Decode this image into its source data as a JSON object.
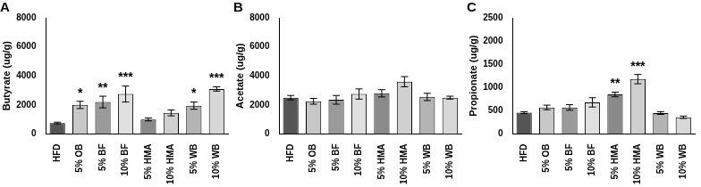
{
  "chart_data": [
    {
      "type": "bar",
      "title": "A",
      "y_label": "Butyrate (ug/g)",
      "categories": [
        "HFD",
        "5% OB",
        "5% BF",
        "10% BF",
        "5% HMA",
        "10% HMA",
        "5% WB",
        "10% WB"
      ],
      "values": [
        750,
        2000,
        2200,
        2750,
        1000,
        1450,
        1950,
        3100
      ],
      "errors": [
        60,
        250,
        400,
        550,
        100,
        200,
        250,
        150
      ],
      "annotations": [
        null,
        "*",
        "**",
        "***",
        null,
        null,
        "*",
        "***"
      ],
      "colors": [
        "#555555",
        "#c8c8c8",
        "#9a9a9a",
        "#e0e0e0",
        "#8a8a8a",
        "#d0d0d0",
        "#b4b4b4",
        "#d8d8d8"
      ],
      "ylim": [
        0,
        8000
      ],
      "yticks": [
        0,
        2000,
        4000,
        6000,
        8000
      ],
      "grid": false
    },
    {
      "type": "bar",
      "title": "B",
      "y_label": "Acetate (ug/g)",
      "categories": [
        "HFD",
        "5% OB",
        "5% BF",
        "10% BF",
        "5% HMA",
        "10% HMA",
        "5% WB",
        "10% WB"
      ],
      "values": [
        2500,
        2250,
        2350,
        2750,
        2800,
        3600,
        2550,
        2500
      ],
      "errors": [
        150,
        200,
        300,
        350,
        250,
        350,
        250,
        100
      ],
      "colors": [
        "#555555",
        "#c8c8c8",
        "#9a9a9a",
        "#e0e0e0",
        "#8a8a8a",
        "#d0d0d0",
        "#b4b4b4",
        "#d8d8d8"
      ],
      "ylim": [
        0,
        8000
      ],
      "yticks": [
        0,
        2000,
        4000,
        6000,
        8000
      ],
      "grid": false
    },
    {
      "type": "bar",
      "title": "C",
      "y_label": "Propionate (ug/g)",
      "categories": [
        "HFD",
        "5% OB",
        "5% BF",
        "10% BF",
        "5% HMA",
        "10% HMA",
        "5% WB",
        "10% WB"
      ],
      "values": [
        460,
        570,
        570,
        680,
        850,
        1180,
        450,
        360
      ],
      "errors": [
        20,
        50,
        60,
        100,
        50,
        100,
        30,
        25
      ],
      "annotations": [
        null,
        null,
        null,
        null,
        "**",
        "***",
        null,
        null
      ],
      "colors": [
        "#555555",
        "#c8c8c8",
        "#9a9a9a",
        "#e0e0e0",
        "#8a8a8a",
        "#d0d0d0",
        "#b4b4b4",
        "#d8d8d8"
      ],
      "ylim": [
        0,
        2500
      ],
      "yticks": [
        0,
        500,
        1000,
        1500,
        2000,
        2500
      ],
      "grid": false
    }
  ]
}
